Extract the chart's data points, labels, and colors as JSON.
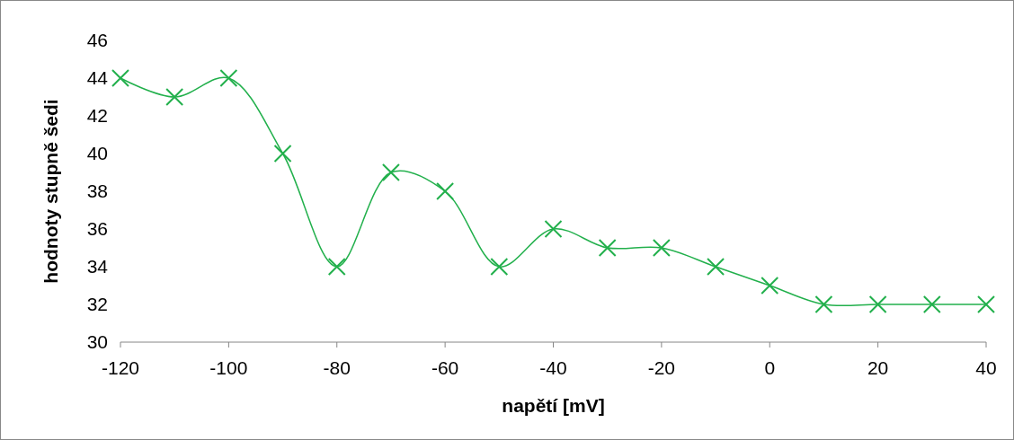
{
  "chart_data": {
    "type": "line",
    "xlabel": "napětí [mV]",
    "ylabel": "hodnoty stupně šedi",
    "x": [
      -120,
      -110,
      -100,
      -90,
      -80,
      -70,
      -60,
      -50,
      -40,
      -30,
      -20,
      -10,
      0,
      10,
      20,
      30,
      40
    ],
    "series": [
      {
        "color": "#22b04c",
        "values": [
          44,
          43,
          44,
          40,
          34,
          39,
          38,
          34,
          36,
          35,
          35,
          34,
          33,
          32,
          32,
          32,
          32
        ]
      }
    ],
    "xlim": [
      -120,
      40
    ],
    "xticks": [
      -120,
      -100,
      -80,
      -60,
      -40,
      -20,
      0,
      20,
      40
    ],
    "ylim": [
      30,
      46
    ],
    "yticks": [
      30,
      32,
      34,
      36,
      38,
      40,
      42,
      44,
      46
    ],
    "grid": false,
    "marker": "cross",
    "line_style": "solid"
  }
}
